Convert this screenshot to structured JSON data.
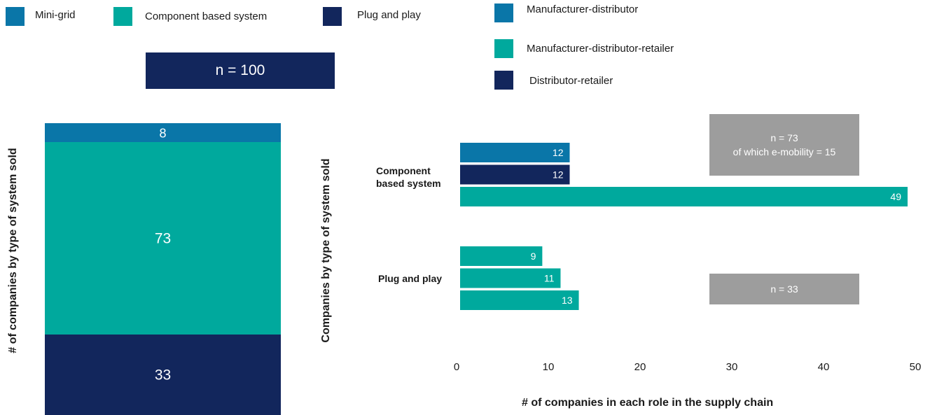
{
  "left_legend": [
    {
      "label": "Mini-grid",
      "color": "#0a76a8"
    },
    {
      "label": "Component based system",
      "color": "#00a99d"
    },
    {
      "label": "Plug and play",
      "color": "#12265c"
    }
  ],
  "right_legend": [
    {
      "label": "Manufacturer-distributor",
      "color": "#0a76a8"
    },
    {
      "label": "Manufacturer-distributor-retailer",
      "color": "#00a99d"
    },
    {
      "label": "Distributor-retailer",
      "color": "#12265c"
    }
  ],
  "left_chart": {
    "n_label": "n = 100",
    "ylabel": "# of companies by type of system sold"
  },
  "right_chart": {
    "ylabel": "Companies by type of system sold",
    "xlabel": "# of companies in each role in the supply chain",
    "group_labels": [
      [
        "Component",
        "based system"
      ],
      [
        "Plug and play"
      ]
    ],
    "n_boxes": [
      {
        "line1": "n = 73",
        "line2": "of which e-mobility = 15"
      },
      {
        "line1": "n = 33"
      }
    ]
  },
  "colors": {
    "blue": "#0a76a8",
    "teal": "#00a99d",
    "navy": "#12265c",
    "gray": "#9d9d9d"
  },
  "chart_data": [
    {
      "type": "bar",
      "stacked": true,
      "title": "n = 100",
      "ylabel": "# of companies by type of system sold",
      "series": [
        {
          "name": "Plug and play",
          "values": [
            33
          ]
        },
        {
          "name": "Component based system",
          "values": [
            73
          ]
        },
        {
          "name": "Mini-grid",
          "values": [
            8
          ]
        }
      ]
    },
    {
      "type": "bar",
      "orientation": "horizontal",
      "xlabel": "# of companies in each role in the supply chain",
      "ylabel": "Companies by type of system sold",
      "xlim": [
        0,
        50
      ],
      "xticks": [
        "0",
        "10",
        "20",
        "30",
        "40",
        "50"
      ],
      "groups": [
        {
          "name": "Component based system",
          "annotation": "n = 73 of which e-mobility = 15",
          "bars": [
            {
              "series": "Manufacturer-distributor",
              "value": 12
            },
            {
              "series": "Distributor-retailer",
              "value": 12
            },
            {
              "series": "Manufacturer-distributor-retailer",
              "value": 49
            }
          ]
        },
        {
          "name": "Plug and play",
          "annotation": "n = 33",
          "bars": [
            {
              "series": "Manufacturer-distributor-retailer",
              "value": 9
            },
            {
              "series": "Manufacturer-distributor-retailer",
              "value": 11
            },
            {
              "series": "Manufacturer-distributor-retailer",
              "value": 13
            }
          ]
        }
      ]
    }
  ]
}
